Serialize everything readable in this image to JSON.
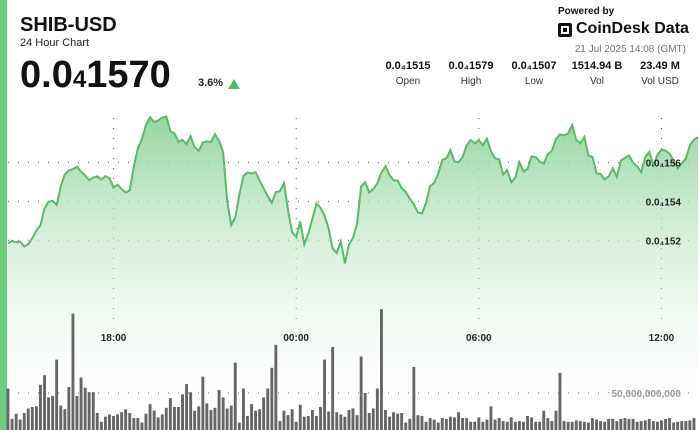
{
  "header": {
    "title": "SHIB-USD",
    "subtitle": "24 Hour Chart",
    "price_main": "0.0",
    "price_sub": "4",
    "price_tail": "1570",
    "change": "3.6%",
    "change_icon": "triangle-up-icon",
    "powered_by": "Powered by",
    "brand": "CoinDesk Data",
    "timestamp": "21 Jul 2025 14:08 (GMT)"
  },
  "stats": [
    {
      "value": "0.0₄1515",
      "label": "Open"
    },
    {
      "value": "0.0₄1579",
      "label": "High"
    },
    {
      "value": "0.0₄1507",
      "label": "Low"
    },
    {
      "value": "1514.94 B",
      "label": "Vol"
    },
    {
      "value": "23.49 M",
      "label": "Vol USD"
    }
  ],
  "colors": {
    "accent": "#6fcf7e",
    "line": "#5cb86b",
    "area_top": "#8fd49a",
    "volume_bar": "#555555",
    "up": "#4fbd63"
  },
  "chart_data": {
    "type": "line",
    "price_series": [
      1.5185e-05,
      1.5197e-05,
      1.5189e-05,
      1.5193e-05,
      1.5168e-05,
      1.518e-05,
      1.5212e-05,
      1.525e-05,
      1.5278e-05,
      1.5362e-05,
      1.5398e-05,
      1.5403e-05,
      1.5382e-05,
      1.5478e-05,
      1.5538e-05,
      1.5559e-05,
      1.5567e-05,
      1.5578e-05,
      1.5553e-05,
      1.5534e-05,
      1.551e-05,
      1.5523e-05,
      1.5529e-05,
      1.5513e-05,
      1.553e-05,
      1.552e-05,
      1.5472e-05,
      1.5486e-05,
      1.5464e-05,
      1.5446e-05,
      1.5458e-05,
      1.5578e-05,
      1.5674e-05,
      1.5721e-05,
      1.5794e-05,
      1.5834e-05,
      1.5809e-05,
      1.5817e-05,
      1.5832e-05,
      1.5837e-05,
      1.5761e-05,
      1.5751e-05,
      1.5707e-05,
      1.5717e-05,
      1.5694e-05,
      1.5735e-05,
      1.5678e-05,
      1.5661e-05,
      1.5703e-05,
      1.5709e-05,
      1.5706e-05,
      1.5746e-05,
      1.5712e-05,
      1.5654e-05,
      1.5402e-05,
      1.5277e-05,
      1.5318e-05,
      1.5435e-05,
      1.5531e-05,
      1.5549e-05,
      1.5545e-05,
      1.555e-05,
      1.5507e-05,
      1.5466e-05,
      1.5427e-05,
      1.5393e-05,
      1.5448e-05,
      1.5453e-05,
      1.5494e-05,
      1.5352e-05,
      1.5241e-05,
      1.5217e-05,
      1.5296e-05,
      1.5179e-05,
      1.5237e-05,
      1.531e-05,
      1.5391e-05,
      1.5366e-05,
      1.5327e-05,
      1.5259e-05,
      1.5157e-05,
      1.5134e-05,
      1.5194e-05,
      1.5081e-05,
      1.5177e-05,
      1.5213e-05,
      1.5286e-05,
      1.5477e-05,
      1.5499e-05,
      1.5446e-05,
      1.5465e-05,
      1.5493e-05,
      1.5549e-05,
      1.5581e-05,
      1.5537e-05,
      1.5509e-05,
      1.5507e-05,
      1.5469e-05,
      1.5448e-05,
      1.5414e-05,
      1.5386e-05,
      1.5343e-05,
      1.5339e-05,
      1.5393e-05,
      1.5479e-05,
      1.5495e-05,
      1.5542e-05,
      1.5614e-05,
      1.5622e-05,
      1.5664e-05,
      1.5606e-05,
      1.5602e-05,
      1.5627e-05,
      1.5688e-05,
      1.5716e-05,
      1.5699e-05,
      1.5715e-05,
      1.569e-05,
      1.5723e-05,
      1.5658e-05,
      1.5621e-05,
      1.5617e-05,
      1.5538e-05,
      1.5562e-05,
      1.5498e-05,
      1.5524e-05,
      1.5602e-05,
      1.5555e-05,
      1.5567e-05,
      1.5632e-05,
      1.5628e-05,
      1.5605e-05,
      1.5594e-05,
      1.5643e-05,
      1.5661e-05,
      1.5721e-05,
      1.5745e-05,
      1.574e-05,
      1.575e-05,
      1.5793e-05,
      1.5718e-05,
      1.5699e-05,
      1.5732e-05,
      1.5636e-05,
      1.5629e-05,
      1.5544e-05,
      1.5541e-05,
      1.5513e-05,
      1.5529e-05,
      1.557e-05,
      1.5527e-05,
      1.561e-05,
      1.5624e-05,
      1.5637e-05,
      1.5599e-05,
      1.5581e-05,
      1.5551e-05,
      1.5628e-05,
      1.5655e-05,
      1.5587e-05,
      1.5639e-05,
      1.5666e-05,
      1.5661e-05,
      1.5646e-05,
      1.561e-05,
      1.557e-05,
      1.5596e-05,
      1.562e-05,
      1.569e-05,
      1.5718e-05,
      1.573e-05
    ],
    "volume_series": [
      56000000000.0,
      15000000000.0,
      22000000000.0,
      14000000000.0,
      23000000000.0,
      29000000000.0,
      31000000000.0,
      32000000000.0,
      61000000000.0,
      74000000000.0,
      44000000000.0,
      46000000000.0,
      95000000000.0,
      33000000000.0,
      28000000000.0,
      58000000000.0,
      157000000000.0,
      46000000000.0,
      71000000000.0,
      57000000000.0,
      51000000000.0,
      51000000000.0,
      23000000000.0,
      11000000000.0,
      18000000000.0,
      21000000000.0,
      19000000000.0,
      21000000000.0,
      24000000000.0,
      28000000000.0,
      23000000000.0,
      16000000000.0,
      16000000000.0,
      10000000000.0,
      22000000000.0,
      35000000000.0,
      26000000000.0,
      17000000000.0,
      21000000000.0,
      30000000000.0,
      43000000000.0,
      31000000000.0,
      31000000000.0,
      48000000000.0,
      62000000000.0,
      51000000000.0,
      26000000000.0,
      32000000000.0,
      72000000000.0,
      36000000000.0,
      27000000000.0,
      30000000000.0,
      54000000000.0,
      44000000000.0,
      29000000000.0,
      33000000000.0,
      91000000000.0,
      10000000000.0,
      56000000000.0,
      19000000000.0,
      35000000000.0,
      26000000000.0,
      28000000000.0,
      44000000000.0,
      56000000000.0,
      84000000000.0,
      115000000000.0,
      12000000000.0,
      26000000000.0,
      20000000000.0,
      28000000000.0,
      11000000000.0,
      34000000000.0,
      18000000000.0,
      19000000000.0,
      27000000000.0,
      19000000000.0,
      31000000000.0,
      95000000000.0,
      25000000000.0,
      112000000000.0,
      24000000000.0,
      21000000000.0,
      18000000000.0,
      27000000000.0,
      29000000000.0,
      20000000000.0,
      99000000000.0,
      50000000000.0,
      23000000000.0,
      29000000000.0,
      56000000000.0,
      163000000000.0,
      27000000000.0,
      18000000000.0,
      24000000000.0,
      22000000000.0,
      23000000000.0,
      10000000000.0,
      15000000000.0,
      85000000000.0,
      20000000000.0,
      19000000000.0,
      11000000000.0,
      16000000000.0,
      14000000000.0,
      10000000000.0,
      16000000000.0,
      15000000000.0,
      18000000000.0,
      17000000000.0,
      24000000000.0,
      16000000000.0,
      16000000000.0,
      11000000000.0,
      11000000000.0,
      17000000000.0,
      11000000000.0,
      14000000000.0,
      32000000000.0,
      14000000000.0,
      16000000000.0,
      12000000000.0,
      11000000000.0,
      17000000000.0,
      11000000000.0,
      12000000000.0,
      11000000000.0,
      19000000000.0,
      17000000000.0,
      11000000000.0,
      11000000000.0,
      26000000000.0,
      16000000000.0,
      12000000000.0,
      26000000000.0,
      77000000000.0,
      12000000000.0,
      11000000000.0,
      11000000000.0,
      13000000000.0,
      12000000000.0,
      11000000000.0,
      10000000000.0,
      16000000000.0,
      14000000000.0,
      12000000000.0,
      11000000000.0,
      15000000000.0,
      15000000000.0,
      12000000000.0,
      15000000000.0,
      16000000000.0,
      15000000000.0,
      15000000000.0,
      11000000000.0,
      12000000000.0,
      13000000000.0,
      15000000000.0,
      12000000000.0,
      11000000000.0,
      13000000000.0,
      15000000000.0,
      16000000000.0,
      10000000000.0,
      11000000000.0,
      12000000000.0,
      12000000000.0,
      13000000000.0,
      16000000000.0
    ],
    "price_ticks": [
      {
        "value": 1.56e-05,
        "label": "0.0₄156"
      },
      {
        "value": 1.54e-05,
        "label": "0.0₄154"
      },
      {
        "value": 1.52e-05,
        "label": "0.0₄152"
      }
    ],
    "volume_tick": {
      "value": 50000000000.0,
      "label": "50,000,000,000"
    },
    "x_ticks": [
      {
        "index": 26,
        "label": "18:00"
      },
      {
        "index": 71,
        "label": "00:00"
      },
      {
        "index": 116,
        "label": "06:00"
      },
      {
        "index": 161,
        "label": "12:00"
      }
    ],
    "price_ylim": [
      1.4867e-05,
      1.5922e-05
    ],
    "volume_ylim": [
      0,
      560000000000.0
    ],
    "grid": true
  }
}
